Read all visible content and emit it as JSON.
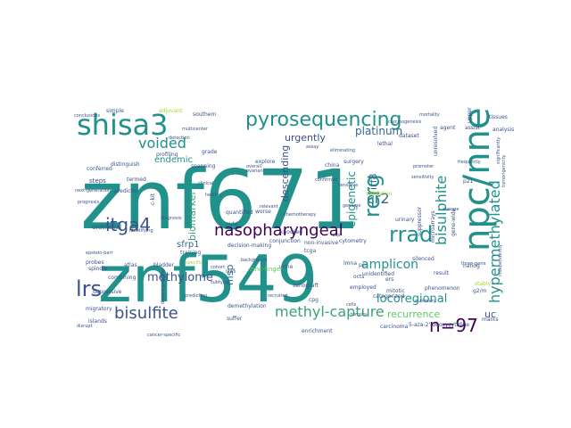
{
  "palette": {
    "teal": "#21918c",
    "green": "#3aa17a",
    "lightgreen": "#5ec962",
    "yellowgreen": "#a8d632",
    "purple": "#46327e",
    "darkpurple": "#440154",
    "blue": "#31688e",
    "navy": "#3b528b",
    "cyan": "#1f9e89",
    "yellow": "#c8d628"
  },
  "words": [
    {
      "text": "znf671",
      "color": "teal"
    },
    {
      "text": "znf549",
      "color": "teal"
    },
    {
      "text": "npc/nne",
      "color": "teal"
    },
    {
      "text": "shisa3",
      "color": "teal"
    },
    {
      "text": "pyrosequencing",
      "color": "teal"
    },
    {
      "text": "itga4",
      "color": "navy"
    },
    {
      "text": "nasopharyngeal",
      "color": "darkpurple"
    },
    {
      "text": "rrad",
      "color": "teal"
    },
    {
      "text": "bisulfite",
      "color": "navy"
    },
    {
      "text": "lrs",
      "color": "navy"
    },
    {
      "text": "n=97",
      "color": "darkpurple"
    },
    {
      "text": "methyl-capture",
      "color": "green"
    },
    {
      "text": "hypermethylated",
      "color": "teal"
    },
    {
      "text": "bisulphite",
      "color": "teal"
    },
    {
      "text": "voided",
      "color": "teal"
    },
    {
      "text": "cr2",
      "color": "blue"
    },
    {
      "text": "rerg",
      "color": "teal"
    },
    {
      "text": "methylome",
      "color": "navy"
    },
    {
      "text": "amplicon",
      "color": "teal"
    },
    {
      "text": "locoregional",
      "color": "teal"
    },
    {
      "text": "epigenetic",
      "color": "teal"
    },
    {
      "text": "platinum",
      "color": "blue"
    },
    {
      "text": "urgently",
      "color": "navy"
    },
    {
      "text": "endemic",
      "color": "teal"
    },
    {
      "text": "biomarker",
      "color": "green"
    },
    {
      "text": "descending",
      "color": "navy"
    },
    {
      "text": "irf8",
      "color": "blue"
    },
    {
      "text": "recurrence",
      "color": "lightgreen"
    },
    {
      "text": "uc",
      "color": "navy"
    },
    {
      "text": "sfrp1",
      "color": "blue"
    },
    {
      "text": "msp",
      "color": "blue"
    },
    {
      "text": "urothelial",
      "color": "navy"
    },
    {
      "text": "steps",
      "color": "navy"
    },
    {
      "text": "conferred",
      "color": "navy"
    },
    {
      "text": "probes",
      "color": "navy"
    },
    {
      "text": "spindle",
      "color": "navy"
    },
    {
      "text": "migratory",
      "color": "navy"
    },
    {
      "text": "depressive",
      "color": "navy"
    },
    {
      "text": "islands",
      "color": "navy"
    },
    {
      "text": "distinguish",
      "color": "navy"
    },
    {
      "text": "predictor",
      "color": "navy"
    },
    {
      "text": "combining",
      "color": "navy"
    },
    {
      "text": "atlas",
      "color": "navy"
    },
    {
      "text": "bladder",
      "color": "navy"
    },
    {
      "text": "training",
      "color": "navy"
    },
    {
      "text": "decision-making",
      "color": "navy"
    },
    {
      "text": "conjunction",
      "color": "navy"
    },
    {
      "text": "non-invasive",
      "color": "navy"
    },
    {
      "text": "urine",
      "color": "navy"
    },
    {
      "text": "unidentified",
      "color": "navy"
    },
    {
      "text": "categorized",
      "color": "navy"
    },
    {
      "text": "employed",
      "color": "navy"
    },
    {
      "text": "mitotic",
      "color": "navy"
    },
    {
      "text": "phenomenon",
      "color": "navy"
    },
    {
      "text": "silenced",
      "color": "navy"
    },
    {
      "text": "urinary",
      "color": "navy"
    },
    {
      "text": "surgery",
      "color": "navy"
    },
    {
      "text": "china",
      "color": "navy"
    },
    {
      "text": "explore",
      "color": "navy"
    },
    {
      "text": "grade",
      "color": "navy"
    },
    {
      "text": "spanning",
      "color": "navy"
    },
    {
      "text": "southern",
      "color": "navy"
    },
    {
      "text": "adjuvant",
      "color": "yellowgreen"
    },
    {
      "text": "simple",
      "color": "navy"
    },
    {
      "text": "demethylation",
      "color": "navy"
    },
    {
      "text": "suffer",
      "color": "navy"
    },
    {
      "text": "enrichment",
      "color": "navy"
    },
    {
      "text": "carcinoma",
      "color": "navy"
    },
    {
      "text": "5-aza-2'-deoxycytidine",
      "color": "navy"
    },
    {
      "text": "cytometry",
      "color": "navy"
    },
    {
      "text": "knocked",
      "color": "navy"
    },
    {
      "text": "worse",
      "color": "navy"
    },
    {
      "text": "quantified",
      "color": "navy"
    },
    {
      "text": "xenograft",
      "color": "navy"
    },
    {
      "text": "cpg",
      "color": "navy"
    },
    {
      "text": "stably",
      "color": "yellowgreen"
    },
    {
      "text": "lethal",
      "color": "navy"
    },
    {
      "text": "agent",
      "color": "navy"
    },
    {
      "text": "dataset",
      "color": "navy"
    },
    {
      "text": "tcga",
      "color": "navy"
    },
    {
      "text": "mda",
      "color": "navy"
    },
    {
      "text": "zinc-finger",
      "color": "lightgreen"
    },
    {
      "text": "c-kit",
      "color": "navy"
    },
    {
      "text": "termed",
      "color": "navy"
    },
    {
      "text": "profiling",
      "color": "navy"
    },
    {
      "text": "unresolved",
      "color": "navy"
    },
    {
      "text": "assist",
      "color": "navy"
    },
    {
      "text": "p21",
      "color": "navy"
    },
    {
      "text": "nanog",
      "color": "navy"
    },
    {
      "text": "g2/m",
      "color": "navy"
    },
    {
      "text": "marks",
      "color": "navy"
    },
    {
      "text": "octs",
      "color": "navy"
    },
    {
      "text": "ers",
      "color": "navy"
    },
    {
      "text": "result",
      "color": "navy"
    },
    {
      "text": "gene-wide",
      "color": "navy"
    },
    {
      "text": "three-gene",
      "color": "navy"
    },
    {
      "text": "pcr",
      "color": "navy"
    },
    {
      "text": "lmna",
      "color": "navy"
    },
    {
      "text": "change",
      "color": "navy"
    },
    {
      "text": "upper",
      "color": "navy"
    },
    {
      "text": "tissues",
      "color": "navy"
    },
    {
      "text": "analysis",
      "color": "navy"
    },
    {
      "text": "suppressor",
      "color": "navy"
    },
    {
      "text": "microarrays",
      "color": "navy"
    },
    {
      "text": "validation",
      "color": "yellowgreen"
    },
    {
      "text": "diagnosis",
      "color": "navy"
    },
    {
      "text": "overall",
      "color": "navy"
    },
    {
      "text": "ovarian",
      "color": "navy"
    },
    {
      "text": "carcinogenesis",
      "color": "navy"
    },
    {
      "text": "conclusions",
      "color": "navy"
    },
    {
      "text": "multicenter",
      "color": "navy"
    },
    {
      "text": "cancer-specific",
      "color": "navy"
    },
    {
      "text": "prognosis",
      "color": "navy"
    },
    {
      "text": "specific",
      "color": "yellowgreen"
    },
    {
      "text": "background",
      "color": "navy"
    },
    {
      "text": "cohort",
      "color": "navy"
    },
    {
      "text": "relevant",
      "color": "navy"
    },
    {
      "text": "subtype",
      "color": "navy"
    },
    {
      "text": "laws",
      "color": "navy"
    },
    {
      "text": "summary",
      "color": "navy"
    },
    {
      "text": "epstein-barr",
      "color": "navy"
    },
    {
      "text": "next-generation",
      "color": "navy"
    },
    {
      "text": "disrupt",
      "color": "navy"
    },
    {
      "text": "significantly",
      "color": "navy"
    },
    {
      "text": "downregulating",
      "color": "navy"
    },
    {
      "text": "independently",
      "color": "navy"
    },
    {
      "text": "identifying",
      "color": "navy"
    },
    {
      "text": "tumorigenicity",
      "color": "navy"
    },
    {
      "text": "recruited",
      "color": "navy"
    },
    {
      "text": "cells",
      "color": "navy"
    },
    {
      "text": "predicting",
      "color": "navy"
    },
    {
      "text": "healthy",
      "color": "navy"
    },
    {
      "text": "chemotherapy",
      "color": "navy"
    },
    {
      "text": "ssp",
      "color": "navy"
    },
    {
      "text": "genome",
      "color": "navy"
    },
    {
      "text": "sensitivity",
      "color": "navy"
    },
    {
      "text": "mortality",
      "color": "navy"
    },
    {
      "text": "frequently",
      "color": "navy"
    },
    {
      "text": "eliminating",
      "color": "navy"
    },
    {
      "text": "confirmed",
      "color": "navy"
    },
    {
      "text": "sensitive",
      "color": "navy"
    },
    {
      "text": "promoter",
      "color": "navy"
    },
    {
      "text": "clinical",
      "color": "navy"
    },
    {
      "text": "detection",
      "color": "navy"
    },
    {
      "text": "assay",
      "color": "navy"
    },
    {
      "text": "tumors",
      "color": "navy"
    }
  ]
}
